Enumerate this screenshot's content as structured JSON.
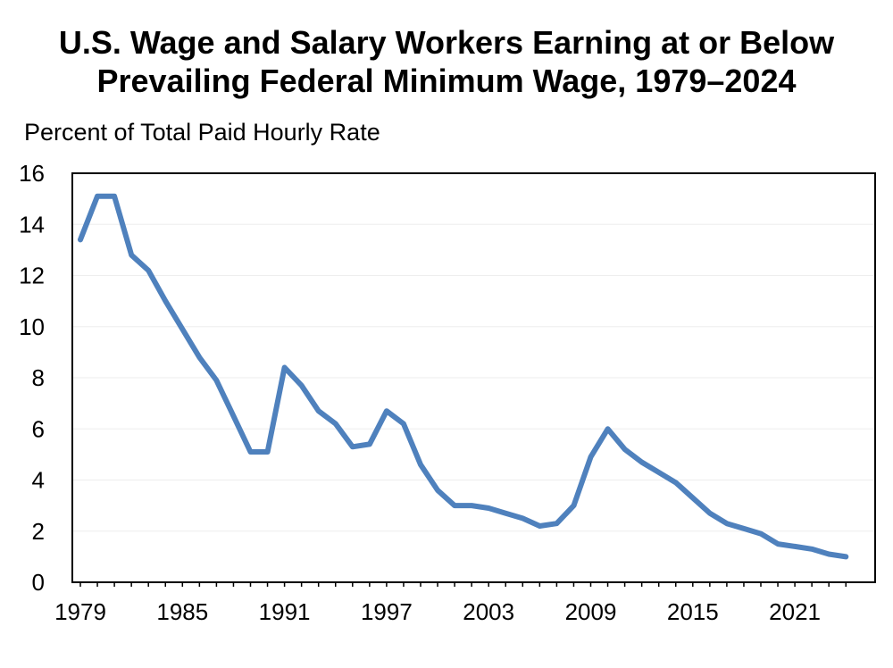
{
  "title": {
    "line1": "U.S. Wage and Salary Workers Earning at or Below",
    "line2": "Prevailing Federal Minimum Wage, 1979–2024"
  },
  "chart_data": {
    "type": "line",
    "title": "U.S. Wage and Salary Workers Earning at or Below Prevailing Federal Minimum Wage, 1979–2024",
    "ylabel": "Percent of Total Paid Hourly Rate",
    "xlabel": "",
    "xlim": [
      1979,
      2024
    ],
    "ylim": [
      0,
      16
    ],
    "y_ticks": [
      0,
      2,
      4,
      6,
      8,
      10,
      12,
      14,
      16
    ],
    "x_ticks": [
      1979,
      1985,
      1991,
      1997,
      2003,
      2009,
      2015,
      2021
    ],
    "grid": true,
    "line_color": "#4f81bd",
    "series": [
      {
        "x": [
          1979,
          1980,
          1981,
          1982,
          1983,
          1984,
          1985,
          1986,
          1987,
          1988,
          1989,
          1990,
          1991,
          1992,
          1993,
          1994,
          1995,
          1996,
          1997,
          1998,
          1999,
          2000,
          2001,
          2002,
          2003,
          2004,
          2005,
          2006,
          2007,
          2008,
          2009,
          2010,
          2011,
          2012,
          2013,
          2014,
          2015,
          2016,
          2017,
          2018,
          2019,
          2020,
          2021,
          2022,
          2023,
          2024
        ],
        "values": [
          13.4,
          15.1,
          15.1,
          12.8,
          12.2,
          11.0,
          9.9,
          8.8,
          7.9,
          6.5,
          5.1,
          5.1,
          8.4,
          7.7,
          6.7,
          6.2,
          5.3,
          5.4,
          6.7,
          6.2,
          4.6,
          3.6,
          3.0,
          3.0,
          2.9,
          2.7,
          2.5,
          2.2,
          2.3,
          3.0,
          4.9,
          6.0,
          5.2,
          4.7,
          4.3,
          3.9,
          3.3,
          2.7,
          2.3,
          2.1,
          1.9,
          1.5,
          1.4,
          1.3,
          1.1,
          1.0
        ]
      }
    ]
  }
}
